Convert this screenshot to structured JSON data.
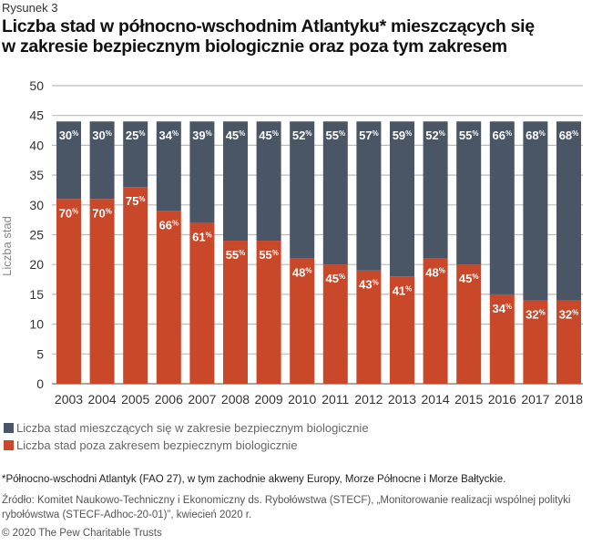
{
  "figure_label": "Rysunek 3",
  "title_line1": "Liczba stad w północno-wschodnim Atlantyku* mieszczących się",
  "title_line2": "w zakresie bezpiecznym biologicznie oraz poza tym zakresem",
  "chart_data": {
    "type": "bar",
    "stacked": true,
    "ylabel": "Liczba stad",
    "ylim": [
      0,
      50
    ],
    "yticks": [
      0,
      5,
      10,
      15,
      20,
      25,
      30,
      35,
      40,
      45,
      50
    ],
    "grid": true,
    "categories": [
      "2003",
      "2004",
      "2005",
      "2006",
      "2007",
      "2008",
      "2009",
      "2010",
      "2011",
      "2012",
      "2013",
      "2014",
      "2015",
      "2016",
      "2017",
      "2018"
    ],
    "series": [
      {
        "name": "Liczba stad poza zakresem bezpiecznym biologicznie",
        "color": "#c9482a",
        "values": [
          31,
          31,
          33,
          29,
          27,
          24,
          24,
          21,
          20,
          19,
          18,
          21,
          20,
          15,
          14,
          14
        ],
        "percent_labels": [
          "70",
          "70",
          "75",
          "66",
          "61",
          "55",
          "55",
          "48",
          "45",
          "43",
          "41",
          "48",
          "45",
          "34",
          "32",
          "32"
        ]
      },
      {
        "name": "Liczba stad mieszczących się w zakresie bezpiecznym biologicznie",
        "color": "#4a5565",
        "values": [
          13,
          13,
          11,
          15,
          17,
          20,
          20,
          23,
          24,
          25,
          26,
          23,
          24,
          29,
          30,
          30
        ],
        "percent_labels": [
          "30",
          "30",
          "25",
          "34",
          "39",
          "45",
          "45",
          "52",
          "55",
          "57",
          "59",
          "52",
          "55",
          "66",
          "68",
          "68"
        ]
      }
    ],
    "percent_sign": "%",
    "legend": "bottom-left"
  },
  "legend": [
    {
      "label": "Liczba stad mieszczących się w zakresie bezpiecznym biologicznie",
      "color": "#4a5565"
    },
    {
      "label": "Liczba stad poza zakresem bezpiecznym biologicznie",
      "color": "#c9482a"
    }
  ],
  "footnote": "*Północno-wschodni Atlantyk (FAO 27), w tym zachodnie akweny Europy, Morze Północne i Morze Bałtyckie.",
  "source": "Źródło: Komitet Naukowo-Techniczny i Ekonomiczny ds. Rybołówstwa (STECF), „Monitorowanie realizacji wspólnej polityki rybołówstwa (STECF-Adhoc-20-01)”, kwiecień 2020 r.",
  "copyright": "© 2020 The Pew Charitable Trusts"
}
